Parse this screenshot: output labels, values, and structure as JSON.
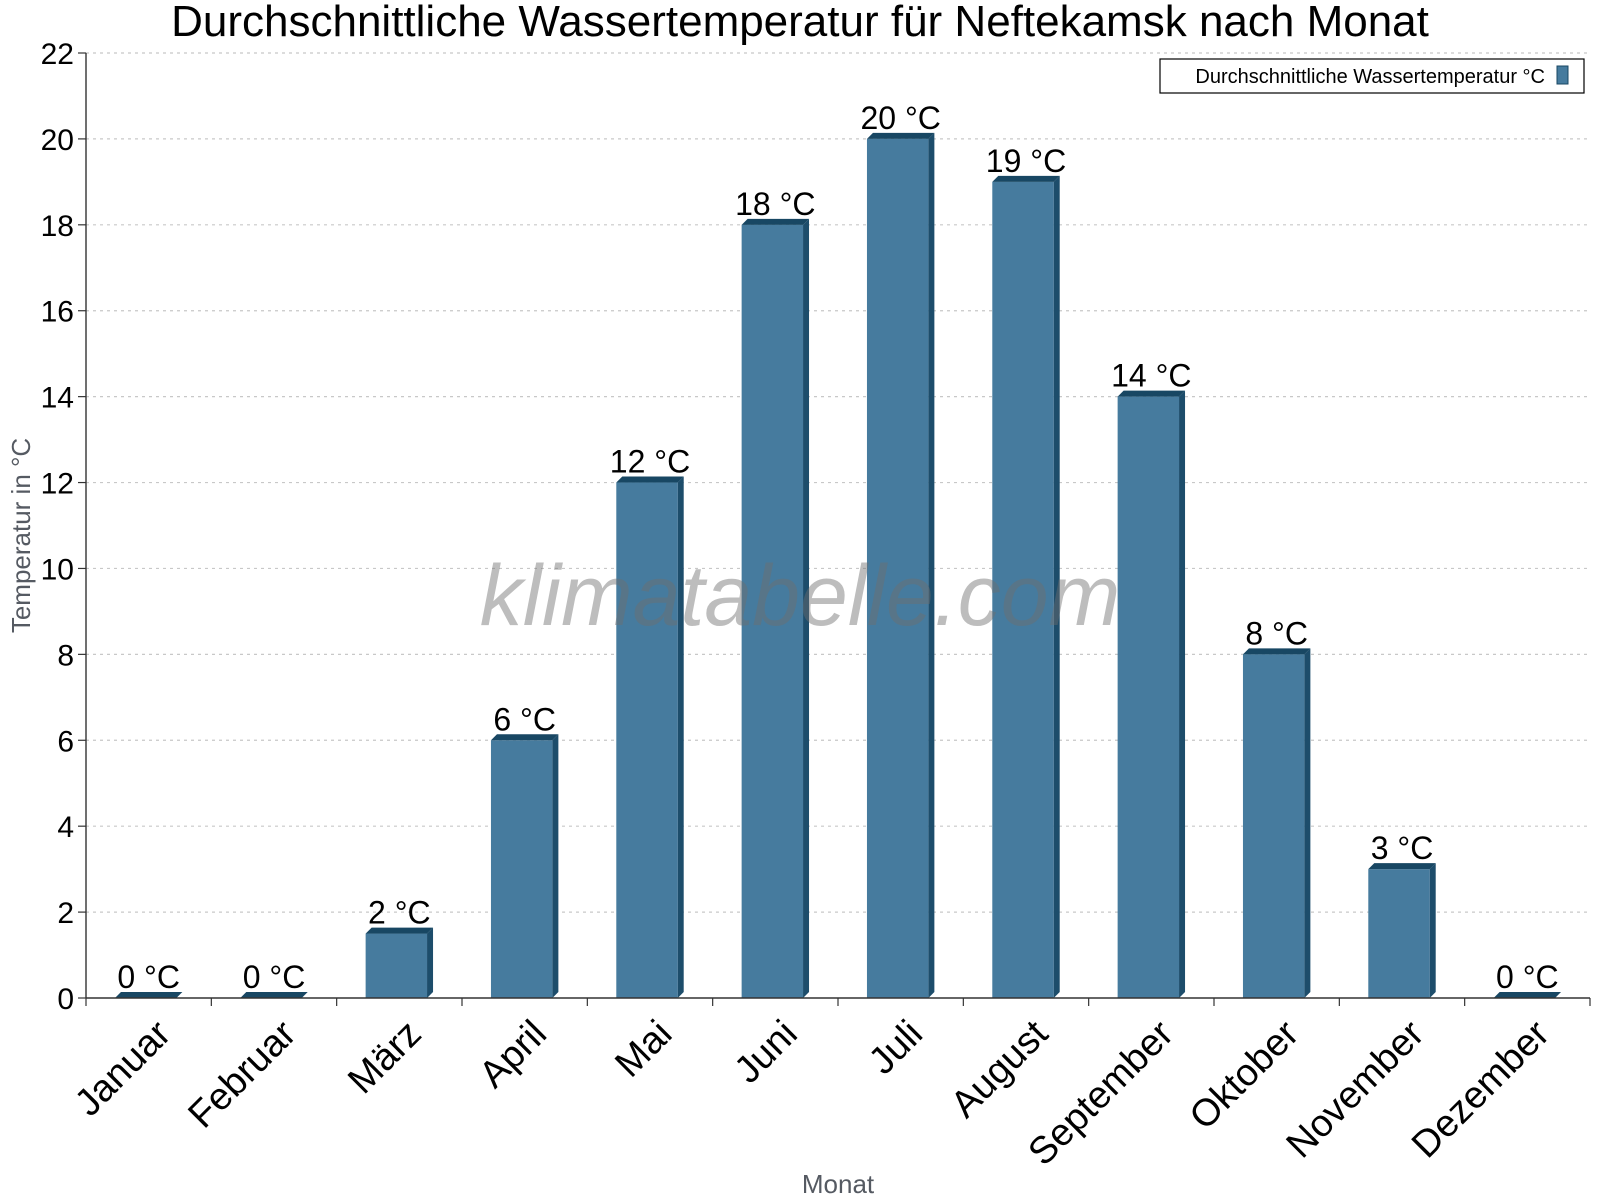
{
  "colors": {
    "bar_front": "#467b9e",
    "bar_side": "#1d4d6b",
    "bar_top": "#184763",
    "grid": "#c8c8c8",
    "axis": "#333333"
  },
  "watermark": "klimatabelle.com",
  "chart_data": {
    "type": "bar",
    "title": "Durchschnittliche Wassertemperatur für Neftekamsk nach Monat",
    "xlabel": "Monat",
    "ylabel": "Temperatur in °C",
    "categories": [
      "Januar",
      "Februar",
      "März",
      "April",
      "Mai",
      "Juni",
      "Juli",
      "August",
      "September",
      "Oktober",
      "November",
      "Dezember"
    ],
    "series": [
      {
        "name": "Durchschnittliche Wassertemperatur °C",
        "values": [
          0,
          0,
          1.5,
          6,
          12,
          18,
          20,
          19,
          14,
          8,
          3,
          0
        ],
        "labels": [
          "0 °C",
          "0 °C",
          "2 °C",
          "6 °C",
          "12 °C",
          "18 °C",
          "20 °C",
          "19 °C",
          "14 °C",
          "8 °C",
          "3 °C",
          "0 °C"
        ]
      }
    ],
    "ylim": [
      0,
      22
    ],
    "yticks": [
      0,
      2,
      4,
      6,
      8,
      10,
      12,
      14,
      16,
      18,
      20,
      22
    ],
    "grid": true,
    "legend_position": "top-right"
  }
}
